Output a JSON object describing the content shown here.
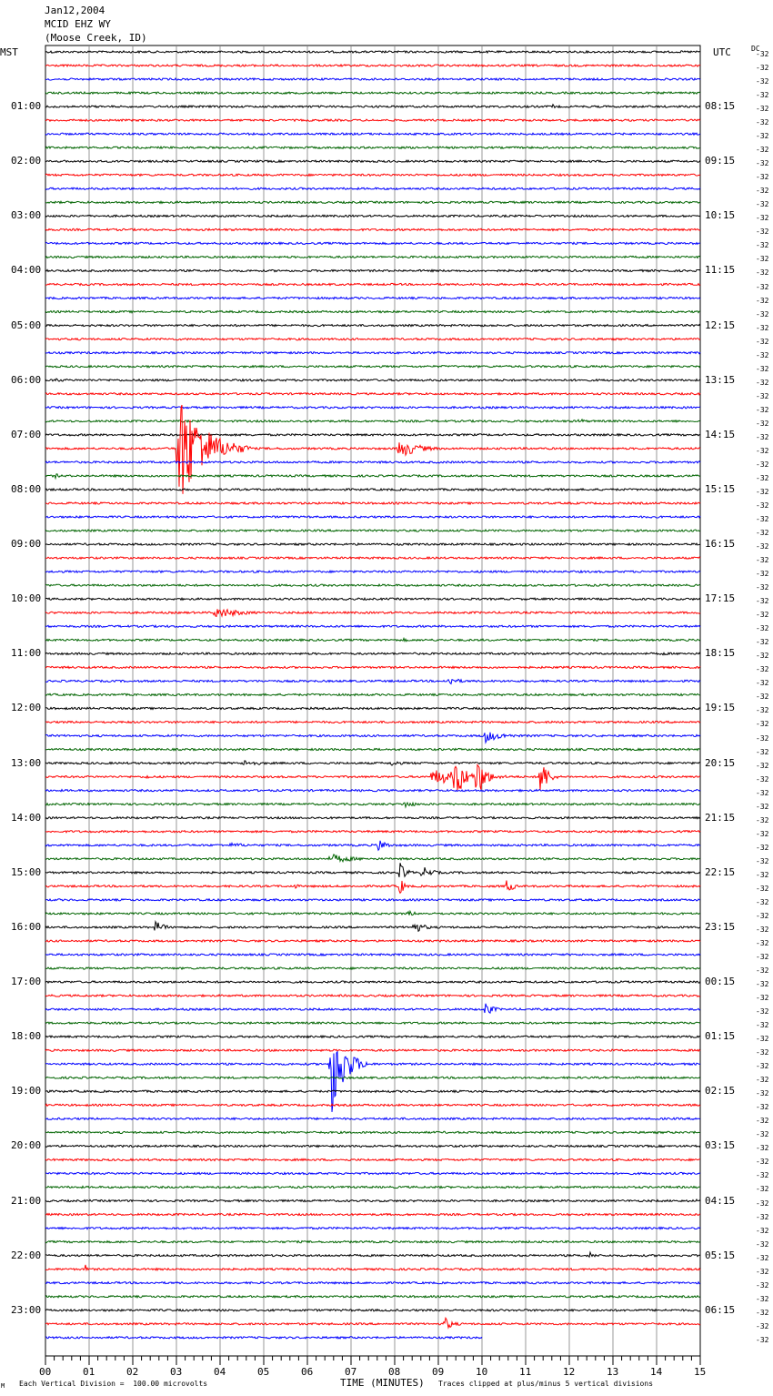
{
  "header": {
    "date": "Jan12,2004",
    "station": "MCID EHZ WY",
    "location": "(Moose Creek, ID)"
  },
  "left_timezone": "MST",
  "right_timezone": "UTC",
  "dc_label": "DC",
  "offset_value": "-32",
  "footer": {
    "scale": "Each Vertical Division =  100.00 microvolts",
    "clip_note": "Traces clipped at plus/minus 5 vertical divisions",
    "corner_mark": "M"
  },
  "colors": {
    "trace_cycle": [
      "#000000",
      "#ff0000",
      "#0000ff",
      "#006400"
    ],
    "grid": "#808080",
    "background": "#ffffff"
  },
  "chart_data": {
    "type": "line",
    "xlabel": "TIME (MINUTES)",
    "xlim": [
      0,
      15
    ],
    "x_tick_labels": [
      "00",
      "01",
      "02",
      "03",
      "04",
      "05",
      "06",
      "07",
      "08",
      "09",
      "10",
      "11",
      "12",
      "13",
      "14",
      "15"
    ],
    "trace_count": 95,
    "last_trace_end_minute": 10,
    "left_hour_labels": [
      "01:00",
      "02:00",
      "03:00",
      "04:00",
      "05:00",
      "06:00",
      "07:00",
      "08:00",
      "09:00",
      "10:00",
      "11:00",
      "12:00",
      "13:00",
      "14:00",
      "15:00",
      "16:00",
      "17:00",
      "18:00",
      "19:00",
      "20:00",
      "21:00",
      "22:00",
      "23:00"
    ],
    "right_hour_labels": [
      "08:15",
      "09:15",
      "10:15",
      "11:15",
      "12:15",
      "13:15",
      "14:15",
      "15:15",
      "16:15",
      "17:15",
      "18:15",
      "19:15",
      "20:15",
      "21:15",
      "22:15",
      "23:15",
      "00:15",
      "01:15",
      "02:15",
      "03:15",
      "04:15",
      "05:15",
      "06:15"
    ],
    "events": [
      {
        "trace": 0,
        "minute": 0.1,
        "duration": 1.0,
        "amp": 2
      },
      {
        "trace": 4,
        "minute": 11.6,
        "duration": 0.4,
        "amp": 3
      },
      {
        "trace": 24,
        "minute": 0.2,
        "duration": 0.8,
        "amp": 3
      },
      {
        "trace": 27,
        "minute": 12.2,
        "duration": 0.5,
        "amp": 4
      },
      {
        "trace": 29,
        "minute": 3.0,
        "duration": 1.7,
        "amp": 75,
        "clip": true
      },
      {
        "trace": 29,
        "minute": 8.05,
        "duration": 1.4,
        "amp": 12
      },
      {
        "trace": 31,
        "minute": 0.2,
        "duration": 0.6,
        "amp": 3
      },
      {
        "trace": 41,
        "minute": 3.85,
        "duration": 1.8,
        "amp": 7
      },
      {
        "trace": 43,
        "minute": 8.2,
        "duration": 0.3,
        "amp": 3
      },
      {
        "trace": 44,
        "minute": 14.1,
        "duration": 0.5,
        "amp": 3
      },
      {
        "trace": 46,
        "minute": 9.2,
        "duration": 0.8,
        "amp": 6
      },
      {
        "trace": 50,
        "minute": 10.0,
        "duration": 1.4,
        "amp": 8
      },
      {
        "trace": 52,
        "minute": 4.5,
        "duration": 1.5,
        "amp": 4
      },
      {
        "trace": 52,
        "minute": 7.9,
        "duration": 0.8,
        "amp": 4
      },
      {
        "trace": 53,
        "minute": 2.3,
        "duration": 0.3,
        "amp": 4
      },
      {
        "trace": 53,
        "minute": 8.8,
        "duration": 3.2,
        "amp": 9
      },
      {
        "trace": 53,
        "minute": 9.35,
        "duration": 0.7,
        "amp": 30
      },
      {
        "trace": 53,
        "minute": 9.85,
        "duration": 0.6,
        "amp": 30
      },
      {
        "trace": 53,
        "minute": 11.3,
        "duration": 0.5,
        "amp": 30
      },
      {
        "trace": 55,
        "minute": 8.2,
        "duration": 0.8,
        "amp": 5
      },
      {
        "trace": 58,
        "minute": 7.6,
        "duration": 0.6,
        "amp": 9
      },
      {
        "trace": 58,
        "minute": 4.2,
        "duration": 1.6,
        "amp": 3
      },
      {
        "trace": 59,
        "minute": 6.5,
        "duration": 1.6,
        "amp": 6
      },
      {
        "trace": 60,
        "minute": 8.1,
        "duration": 0.5,
        "amp": 12
      },
      {
        "trace": 60,
        "minute": 8.6,
        "duration": 0.8,
        "amp": 8
      },
      {
        "trace": 61,
        "minute": 5.7,
        "duration": 0.3,
        "amp": 4
      },
      {
        "trace": 61,
        "minute": 8.1,
        "duration": 0.3,
        "amp": 14
      },
      {
        "trace": 61,
        "minute": 10.55,
        "duration": 0.4,
        "amp": 12
      },
      {
        "trace": 63,
        "minute": 8.3,
        "duration": 0.6,
        "amp": 4
      },
      {
        "trace": 64,
        "minute": 2.5,
        "duration": 0.6,
        "amp": 9
      },
      {
        "trace": 64,
        "minute": 8.4,
        "duration": 0.8,
        "amp": 8
      },
      {
        "trace": 70,
        "minute": 10.05,
        "duration": 0.6,
        "amp": 9
      },
      {
        "trace": 74,
        "minute": 6.5,
        "duration": 0.9,
        "amp": 70,
        "clip": true
      },
      {
        "trace": 84,
        "minute": 14.9,
        "duration": 0.1,
        "amp": 3
      },
      {
        "trace": 88,
        "minute": 12.45,
        "duration": 0.4,
        "amp": 5
      },
      {
        "trace": 89,
        "minute": 0.9,
        "duration": 0.3,
        "amp": 5
      },
      {
        "trace": 93,
        "minute": 9.1,
        "duration": 0.6,
        "amp": 10
      }
    ]
  }
}
